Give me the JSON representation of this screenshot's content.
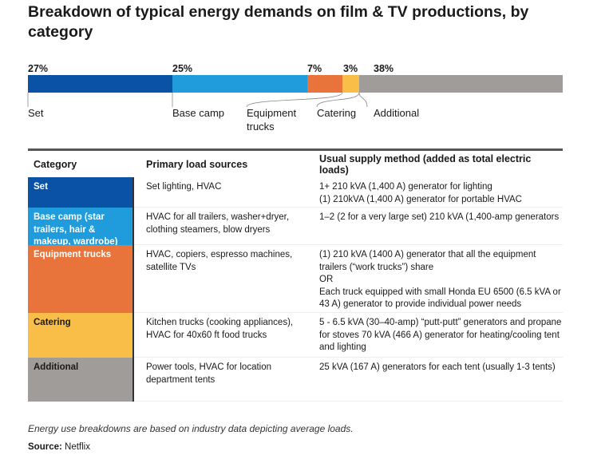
{
  "title": "Breakdown of typical energy demands on film & TV productions, by category",
  "chart_data": {
    "type": "bar",
    "orientation": "horizontal-stacked",
    "categories": [
      "Set",
      "Base camp",
      "Equipment trucks",
      "Catering",
      "Additional"
    ],
    "values": [
      27,
      25,
      7,
      3,
      38
    ],
    "value_labels": [
      "27%",
      "25%",
      "7%",
      "3%",
      "38%"
    ],
    "colors": [
      "#0a52a6",
      "#209bdc",
      "#e8743b",
      "#f8be48",
      "#a09c9a"
    ]
  },
  "table": {
    "headers": [
      "Category",
      "Primary load sources",
      "Usual supply method (added as total electric loads)"
    ],
    "rows": [
      {
        "category": "Set",
        "sources": "Set lighting, HVAC",
        "supply": [
          "1+ 210 kVA (1,400 A) generator for lighting",
          "(1) 210kVA (1,400 A) generator for portable HVAC"
        ],
        "color": "#0a52a6"
      },
      {
        "category": "Base camp (star trailers, hair & makeup, wardrobe)",
        "sources": "HVAC for all trailers, washer+dryer, clothing steamers, blow dryers",
        "supply": [
          "1–2 (2 for a very large set) 210 kVA (1,400-amp generators"
        ],
        "color": "#209bdc"
      },
      {
        "category": "Equipment trucks",
        "sources": "HVAC, copiers, espresso machines, satellite TVs",
        "supply": [
          "(1) 210 kVA (1400 A) generator that all the equipment trailers (“work trucks”) share",
          "OR",
          "Each truck equipped with small Honda EU 6500 (6.5 kVA or 43 A) generator to provide individual power needs"
        ],
        "color": "#e8743b"
      },
      {
        "category": "Catering",
        "sources": "Kitchen trucks (cooking appliances), HVAC for 40x60 ft food trucks",
        "supply": [
          "5 - 6.5 kVA (30–40-amp)  “putt-putt” generators and propane for stoves 70 kVA (466 A) generator for heating/cooling tent and lighting"
        ],
        "color": "#f8be48"
      },
      {
        "category": "Additional",
        "sources": "Power tools, HVAC for location department tents",
        "supply": [
          "25 kVA (167 A) generators for each tent (usually 1-3 tents)"
        ],
        "color": "#a09c9a"
      }
    ]
  },
  "note": "Energy use breakdowns are based on industry data depicting average loads.",
  "source_label": "Source:",
  "source": "Netflix"
}
